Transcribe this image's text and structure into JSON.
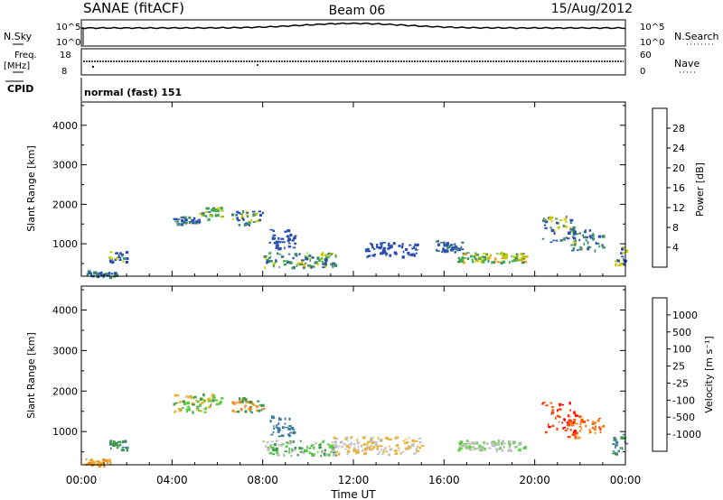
{
  "header": {
    "title": "SANAE (fitACF)",
    "beam": "Beam 06",
    "date": "15/Aug/2012"
  },
  "left_labels": {
    "nsky": "N.Sky",
    "freq": "Freq.",
    "freq_unit": "[MHz]",
    "cpid": "CPID"
  },
  "right_labels": {
    "nsearch": "N.Search",
    "nave": "Nave"
  },
  "small_axes": {
    "nsky_ticks": [
      "10^5",
      "10^0"
    ],
    "nsearch_ticks": [
      "10^5",
      "10^0"
    ],
    "freq_ticks": [
      "18",
      "8"
    ],
    "nave_ticks": [
      "60",
      "0"
    ]
  },
  "cpid_text": "normal (fast) 151",
  "chart_data": [
    {
      "type": "heatmap",
      "name": "power",
      "ylabel": "Slant Range [km]",
      "y_ticks": [
        "4000",
        "3000",
        "2000",
        "1000"
      ],
      "ylim": [
        180,
        4590
      ],
      "xlim": [
        0,
        24
      ],
      "colorbar_label": "Power [dB]",
      "colorbar_ticks": [
        "28",
        "24",
        "20",
        "16",
        "12",
        "8",
        "4"
      ],
      "colorbar_colors": [
        "#0000ff",
        "#2a4fb0",
        "#3d8a6a",
        "#3fb04a",
        "#c8c800",
        "#f0a000",
        "#ff6a00",
        "#ff0000"
      ],
      "patches": [
        {
          "t0": 0.2,
          "t1": 1.6,
          "r0": 180,
          "r1": 340,
          "cols": [
            "#2a4fb0",
            "#3d8a6a"
          ]
        },
        {
          "t0": 1.2,
          "t1": 2.0,
          "r0": 550,
          "r1": 820,
          "cols": [
            "#2a4fb0",
            "#3d8a6a",
            "#c8c800"
          ]
        },
        {
          "t0": 4.0,
          "t1": 5.2,
          "r0": 1500,
          "r1": 1700,
          "cols": [
            "#2a4fb0",
            "#3d8a6a"
          ]
        },
        {
          "t0": 5.2,
          "t1": 6.2,
          "r0": 1650,
          "r1": 1950,
          "cols": [
            "#3d8a6a",
            "#3fb04a",
            "#c8c800"
          ]
        },
        {
          "t0": 6.6,
          "t1": 8.0,
          "r0": 1500,
          "r1": 1850,
          "cols": [
            "#2a4fb0",
            "#3d8a6a",
            "#c8c800"
          ]
        },
        {
          "t0": 8.2,
          "t1": 9.4,
          "r0": 900,
          "r1": 1400,
          "cols": [
            "#2a4fb0"
          ]
        },
        {
          "t0": 8.0,
          "t1": 11.2,
          "r0": 420,
          "r1": 800,
          "cols": [
            "#2a4fb0",
            "#3d8a6a",
            "#3fb04a",
            "#c8c800"
          ]
        },
        {
          "t0": 12.5,
          "t1": 14.8,
          "r0": 700,
          "r1": 1050,
          "cols": [
            "#2a4fb0"
          ]
        },
        {
          "t0": 15.6,
          "t1": 16.8,
          "r0": 800,
          "r1": 1100,
          "cols": [
            "#2a4fb0",
            "#3d8a6a"
          ]
        },
        {
          "t0": 16.5,
          "t1": 19.6,
          "r0": 550,
          "r1": 800,
          "cols": [
            "#3d8a6a",
            "#3fb04a",
            "#c8c800",
            "#f0a000"
          ]
        },
        {
          "t0": 20.3,
          "t1": 21.8,
          "r0": 1050,
          "r1": 1750,
          "cols": [
            "#2a4fb0",
            "#3d8a6a",
            "#c8c800"
          ]
        },
        {
          "t0": 21.4,
          "t1": 23.0,
          "r0": 850,
          "r1": 1400,
          "cols": [
            "#2a4fb0",
            "#3d8a6a"
          ]
        },
        {
          "t0": 23.4,
          "t1": 24.0,
          "r0": 450,
          "r1": 950,
          "cols": [
            "#2a4fb0",
            "#c8c800"
          ]
        }
      ]
    },
    {
      "type": "heatmap",
      "name": "velocity",
      "ylabel": "Slant Range [km]",
      "y_ticks": [
        "4000",
        "3000",
        "2000",
        "1000"
      ],
      "ylim": [
        180,
        4590
      ],
      "xlim": [
        0,
        24
      ],
      "colorbar_label": "Velocity [m s⁻¹]",
      "colorbar_ticks": [
        "1000",
        "500",
        "100",
        "25",
        "-25",
        "-100",
        "-500",
        "-1000"
      ],
      "colorbar_colors": [
        "#ff0000",
        "#ff4a00",
        "#f08a1a",
        "#f0b030",
        "#c0c0c0",
        "#5ad040",
        "#3d9a4a",
        "#3a7a9a",
        "#2a4fb0"
      ],
      "patches": [
        {
          "t0": 0.1,
          "t1": 1.3,
          "r0": 180,
          "r1": 340,
          "cols": [
            "#f08a1a",
            "#f0b030"
          ]
        },
        {
          "t0": 1.2,
          "t1": 2.0,
          "r0": 550,
          "r1": 820,
          "cols": [
            "#3a7a9a",
            "#3d9a4a"
          ]
        },
        {
          "t0": 4.0,
          "t1": 6.2,
          "r0": 1500,
          "r1": 1950,
          "cols": [
            "#3d9a4a",
            "#5ad040",
            "#f0b030"
          ]
        },
        {
          "t0": 6.6,
          "t1": 8.0,
          "r0": 1500,
          "r1": 1850,
          "cols": [
            "#3d9a4a",
            "#f08a1a"
          ]
        },
        {
          "t0": 8.2,
          "t1": 9.4,
          "r0": 900,
          "r1": 1400,
          "cols": [
            "#3a7a9a"
          ]
        },
        {
          "t0": 8.0,
          "t1": 11.2,
          "r0": 420,
          "r1": 800,
          "cols": [
            "#5ad040",
            "#3d9a4a",
            "#c0c0c0"
          ]
        },
        {
          "t0": 11.0,
          "t1": 15.0,
          "r0": 450,
          "r1": 900,
          "cols": [
            "#c0c0c0",
            "#f0b030"
          ]
        },
        {
          "t0": 16.5,
          "t1": 19.6,
          "r0": 550,
          "r1": 800,
          "cols": [
            "#5ad040",
            "#c0c0c0"
          ]
        },
        {
          "t0": 20.3,
          "t1": 21.8,
          "r0": 1000,
          "r1": 1750,
          "cols": [
            "#ff0000",
            "#ff4a00"
          ]
        },
        {
          "t0": 21.4,
          "t1": 23.0,
          "r0": 850,
          "r1": 1400,
          "cols": [
            "#ff4a00",
            "#f08a1a"
          ]
        },
        {
          "t0": 23.4,
          "t1": 24.0,
          "r0": 450,
          "r1": 950,
          "cols": [
            "#3a7a9a",
            "#3d9a4a"
          ]
        }
      ]
    }
  ],
  "time_axis": {
    "ticks": [
      "00:00",
      "04:00",
      "08:00",
      "12:00",
      "16:00",
      "20:00",
      "00:00"
    ],
    "label": "Time UT"
  }
}
